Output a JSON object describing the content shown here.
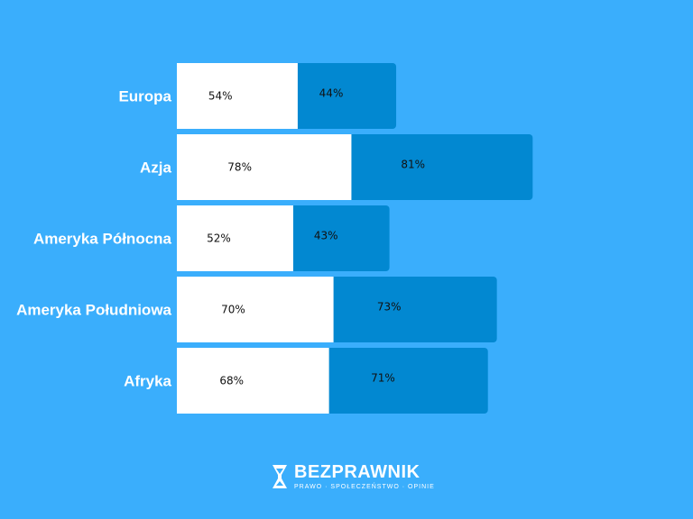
{
  "colors": {
    "background": "#3aaefc",
    "series_1": "#ffffff",
    "series_2": "#0288d1"
  },
  "chart_data": {
    "type": "bar",
    "orientation": "horizontal",
    "stacked": true,
    "categories": [
      "Europa",
      "Azja",
      "Ameryka Północna",
      "Ameryka Południowa",
      "Afryka"
    ],
    "series": [
      {
        "values": [
          54,
          78,
          52,
          70,
          68
        ],
        "labels": [
          "54%",
          "78%",
          "52%",
          "70%",
          "68%"
        ]
      },
      {
        "values": [
          44,
          81,
          43,
          73,
          71
        ],
        "labels": [
          "44%",
          "81%",
          "43%",
          "73%",
          "71%"
        ]
      }
    ],
    "title": "",
    "xlabel": "",
    "ylabel": "",
    "grid": false,
    "legend": "none"
  },
  "logo": {
    "name": "BEZPRAWNIK",
    "tagline": "PRAWO · SPOŁECZEŃSTWO · OPINIE"
  }
}
